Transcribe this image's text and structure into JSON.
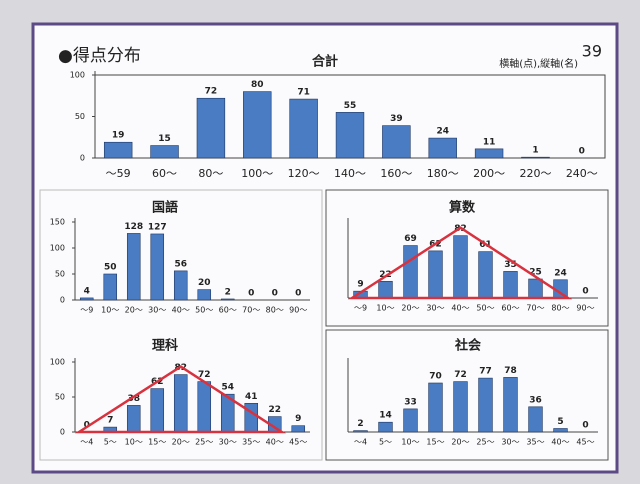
{
  "header": {
    "title": "●得点分布",
    "axis_note": "横軸(点),縦軸(名)",
    "page": "39"
  },
  "chart_data": [
    {
      "type": "bar",
      "title": "合計",
      "color": "#4a7cc4",
      "categories": [
        "～59",
        "60～",
        "80～",
        "100～",
        "120～",
        "140～",
        "160～",
        "180～",
        "200～",
        "220～",
        "240～"
      ],
      "values": [
        19,
        15,
        72,
        80,
        71,
        55,
        39,
        24,
        11,
        1,
        0
      ],
      "ylim": [
        0,
        100
      ],
      "yticks": [
        0,
        50,
        100
      ]
    },
    {
      "type": "bar",
      "title": "国語",
      "color": "#4a7cc4",
      "categories": [
        "～9",
        "10～",
        "20～",
        "30～",
        "40～",
        "50～",
        "60～",
        "70～",
        "80～",
        "90～"
      ],
      "values": [
        4,
        50,
        128,
        127,
        56,
        20,
        2,
        0,
        0,
        0
      ],
      "ylim": [
        0,
        150
      ],
      "yticks": [
        0,
        50,
        100,
        150
      ]
    },
    {
      "type": "bar",
      "title": "算数",
      "color": "#4a7cc4",
      "annotation_shape": "triangle",
      "annotation_color": "#d8323e",
      "categories": [
        "～9",
        "10～",
        "20～",
        "30～",
        "40～",
        "50～",
        "60～",
        "70～",
        "80～",
        "90～"
      ],
      "values": [
        9,
        22,
        69,
        62,
        82,
        61,
        35,
        25,
        24,
        0
      ],
      "ylim": [
        0,
        100
      ]
    },
    {
      "type": "bar",
      "title": "理科",
      "color": "#4a7cc4",
      "annotation_shape": "triangle",
      "annotation_color": "#d8323e",
      "categories": [
        "～4",
        "5～",
        "10～",
        "15～",
        "20～",
        "25～",
        "30～",
        "35～",
        "40～",
        "45～"
      ],
      "values": [
        0,
        7,
        38,
        62,
        82,
        72,
        54,
        41,
        22,
        9
      ],
      "ylim": [
        0,
        100
      ],
      "yticks": [
        0,
        50,
        100
      ]
    },
    {
      "type": "bar",
      "title": "社会",
      "color": "#4a7cc4",
      "categories": [
        "～4",
        "5～",
        "10～",
        "15～",
        "20～",
        "25～",
        "30～",
        "35～",
        "40～",
        "45～"
      ],
      "values": [
        2,
        14,
        33,
        70,
        72,
        77,
        78,
        36,
        5,
        0
      ],
      "ylim": [
        0,
        100
      ]
    }
  ]
}
